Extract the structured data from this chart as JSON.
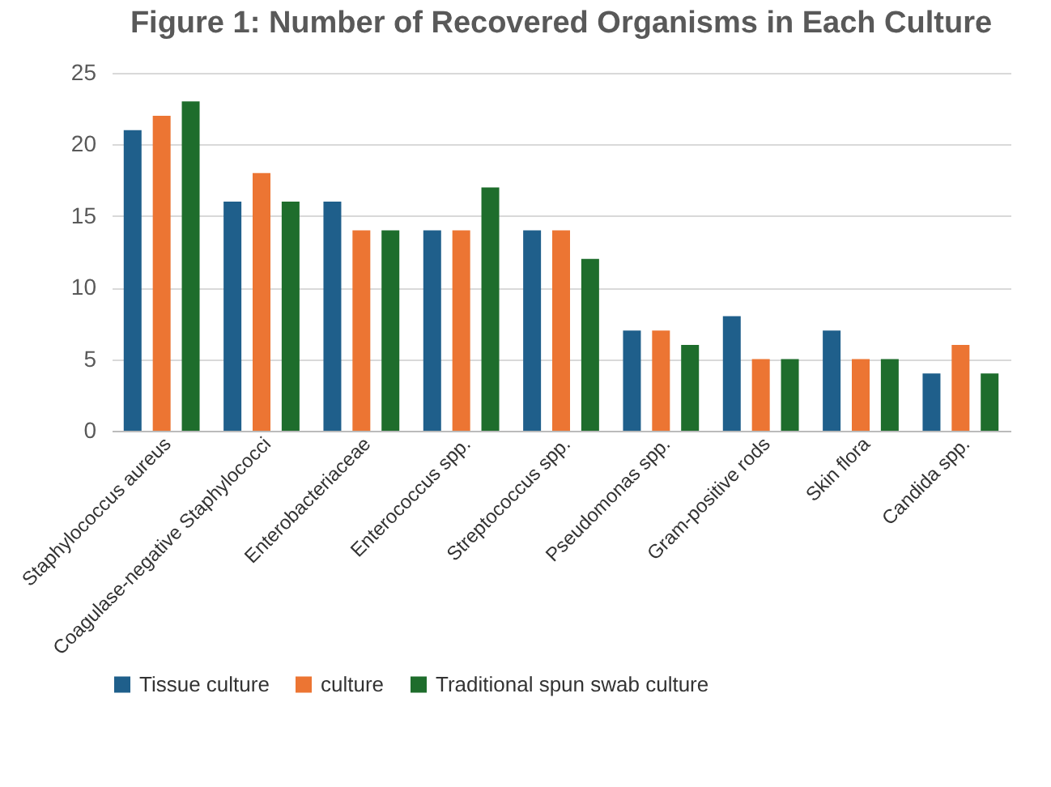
{
  "chart_data": {
    "type": "bar",
    "title": "Figure 1: Number of Recovered Organisms in Each Culture",
    "categories": [
      "Staphylococcus aureus",
      "Coagulase-negative Staphylococci",
      "Enterobacteriaceae",
      "Enterococcus spp.",
      "Streptococcus spp.",
      "Pseudomonas spp.",
      "Gram-positive rods",
      "Skin flora",
      "Candida spp."
    ],
    "series": [
      {
        "name": "Tissue culture",
        "color": "#1f5f8b",
        "values": [
          21,
          16,
          16,
          14,
          14,
          7,
          8,
          7,
          4
        ]
      },
      {
        "name": "culture",
        "color": "#ec7533",
        "values": [
          22,
          18,
          14,
          14,
          14,
          7,
          5,
          5,
          6
        ]
      },
      {
        "name": "Traditional spun swab culture",
        "color": "#1e6d2c",
        "values": [
          23,
          16,
          14,
          17,
          12,
          6,
          5,
          5,
          4
        ]
      }
    ],
    "ylim": [
      0,
      25
    ],
    "yticks": [
      0,
      5,
      10,
      15,
      20,
      25
    ],
    "grid": "y",
    "legend": "bottom"
  }
}
